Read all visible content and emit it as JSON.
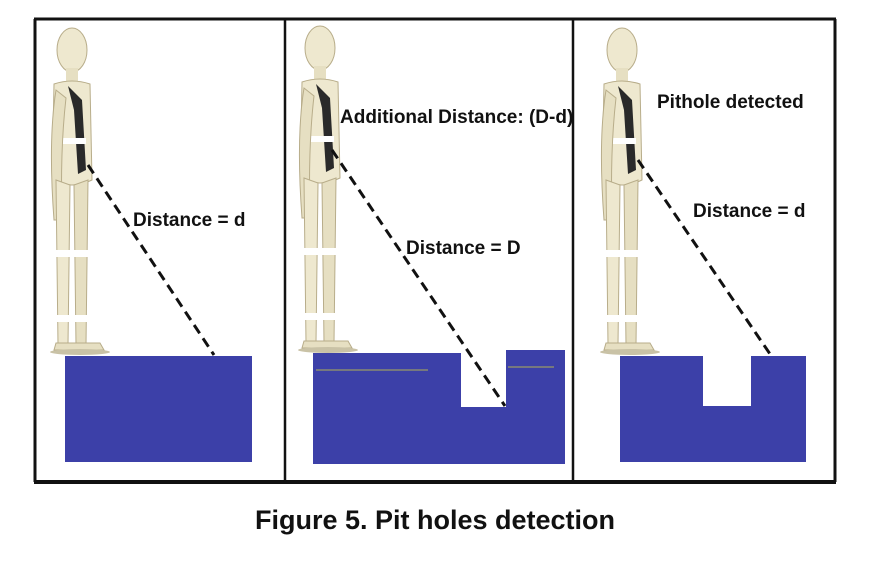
{
  "figure": {
    "caption": "Figure 5. Pit holes detection",
    "panels": [
      {
        "labels": [
          "Distance = d"
        ],
        "has_pit": false
      },
      {
        "labels": [
          "Additional Distance: (D-d)",
          "Distance = D"
        ],
        "has_pit": true
      },
      {
        "labels": [
          "Pithole detected",
          "Distance = d"
        ],
        "has_pit": true
      }
    ]
  },
  "colors": {
    "surface": "#3c40a8",
    "frame": "#111111",
    "figure_skin": "#eee8cf"
  },
  "icons": {
    "person": "standing-mannequin-icon"
  }
}
